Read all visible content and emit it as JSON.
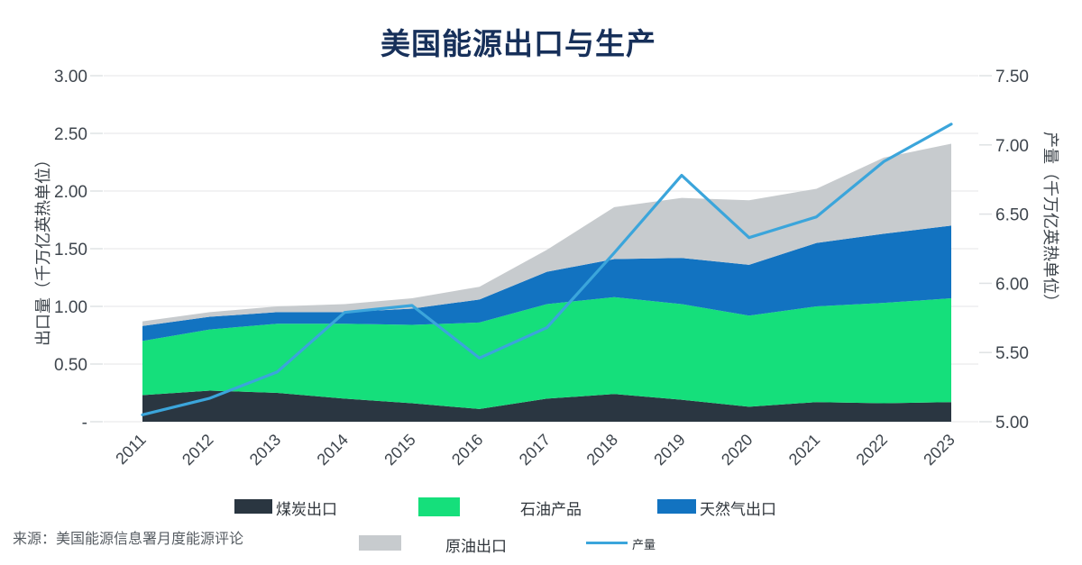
{
  "title": "美国能源出口与生产",
  "source": "来源：美国能源信息署月度能源评论",
  "chart_data": {
    "type": "area",
    "subtype": "stacked-area-with-line",
    "title": "美国能源出口与生产",
    "x": [
      2011,
      2012,
      2013,
      2014,
      2015,
      2016,
      2017,
      2018,
      2019,
      2020,
      2021,
      2022,
      2023
    ],
    "series": [
      {
        "name": "煤炭出口",
        "type": "area",
        "axis": "left",
        "color": "#2a3641",
        "values": [
          0.23,
          0.27,
          0.25,
          0.2,
          0.16,
          0.11,
          0.2,
          0.24,
          0.19,
          0.13,
          0.17,
          0.16,
          0.17
        ]
      },
      {
        "name": "石油产品",
        "type": "area",
        "axis": "left",
        "color": "#15df7b",
        "values": [
          0.47,
          0.53,
          0.6,
          0.65,
          0.68,
          0.75,
          0.82,
          0.84,
          0.83,
          0.79,
          0.83,
          0.87,
          0.9
        ]
      },
      {
        "name": "天然气出口",
        "type": "area",
        "axis": "left",
        "color": "#1273c1",
        "values": [
          0.13,
          0.11,
          0.1,
          0.1,
          0.14,
          0.2,
          0.28,
          0.33,
          0.4,
          0.44,
          0.55,
          0.6,
          0.63
        ]
      },
      {
        "name": "原油出口",
        "type": "area",
        "axis": "left",
        "color": "#c7cbce",
        "values": [
          0.04,
          0.04,
          0.05,
          0.07,
          0.09,
          0.11,
          0.19,
          0.45,
          0.52,
          0.56,
          0.47,
          0.66,
          0.71
        ]
      },
      {
        "name": "产量",
        "type": "line",
        "axis": "right",
        "color": "#3ba5db",
        "values": [
          5.05,
          5.17,
          5.36,
          5.79,
          5.84,
          5.46,
          5.68,
          6.22,
          6.78,
          6.33,
          6.48,
          6.88,
          7.15
        ]
      }
    ],
    "y_left": {
      "title": "出口量（千万亿英热单位）",
      "range": [
        0,
        3
      ],
      "ticks": [
        "3.00",
        "2.50",
        "2.00",
        "1.50",
        "1.00",
        "0.50",
        "-"
      ],
      "tick_values": [
        3.0,
        2.5,
        2.0,
        1.5,
        1.0,
        0.5,
        0
      ]
    },
    "y_right": {
      "title": "产量（千万亿英热单位）",
      "range": [
        5,
        7.5
      ],
      "ticks": [
        "7.50",
        "7.00",
        "6.50",
        "6.00",
        "5.50",
        "5.00"
      ],
      "tick_values": [
        7.5,
        7.0,
        6.5,
        6.0,
        5.5,
        5.0
      ]
    },
    "grid": "horizontal-only",
    "legend_position": "bottom",
    "x_tick_rotation": -45
  }
}
